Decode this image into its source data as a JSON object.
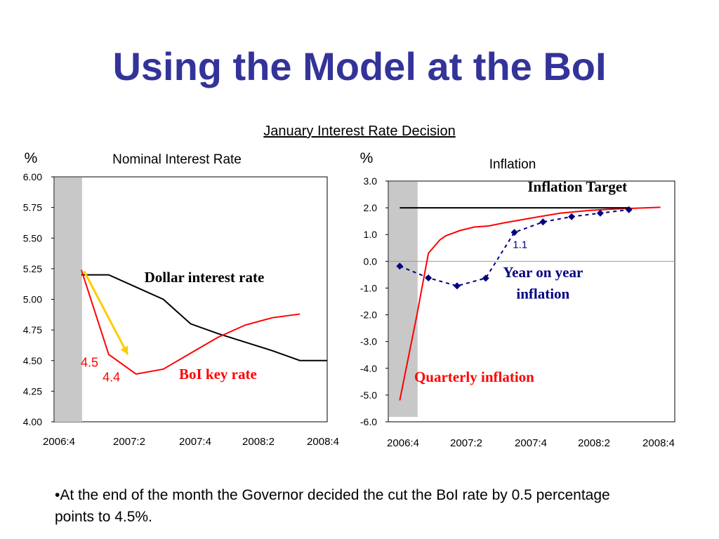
{
  "slide": {
    "title": "Using the Model at the BoI",
    "subtitle": "January Interest Rate Decision",
    "note": "•At the end of the month the Governor decided the cut the BoI rate by 0.5 percentage points to 4.5%."
  },
  "colors": {
    "title": "#333399",
    "boi_rate": "#ff0000",
    "dollar_rate": "#000000",
    "arrow": "#ffcc00",
    "yoy_inflation": "#000080",
    "shade": "#c8c8c8"
  },
  "chart_data": [
    {
      "type": "line",
      "title": "Nominal Interest Rate",
      "ylabel": "%",
      "ylim": [
        4.0,
        6.0
      ],
      "y_ticks": [
        "4.00",
        "4.25",
        "4.50",
        "4.75",
        "5.00",
        "5.25",
        "5.50",
        "5.75",
        "6.00"
      ],
      "x_tick_labels": [
        "2006:4",
        "2007:2",
        "2007:4",
        "2008:2",
        "2008:4"
      ],
      "shaded_region": {
        "x_start": 0,
        "x_end": 0.5
      },
      "series": [
        {
          "name": "Dollar interest rate",
          "color": "#000000",
          "points": [
            [
              0.5,
              5.2
            ],
            [
              1,
              5.2
            ],
            [
              1.5,
              5.1
            ],
            [
              2,
              5.0
            ],
            [
              2.5,
              4.8
            ],
            [
              3,
              4.72
            ],
            [
              3.5,
              4.65
            ],
            [
              4,
              4.58
            ],
            [
              4.5,
              4.5
            ],
            [
              5,
              4.5
            ]
          ]
        },
        {
          "name": "BoI key rate",
          "color": "#ff0000",
          "points": [
            [
              0.5,
              5.24
            ],
            [
              1,
              4.55
            ],
            [
              1.5,
              4.39
            ],
            [
              2,
              4.43
            ],
            [
              2.5,
              4.56
            ],
            [
              3,
              4.69
            ],
            [
              3.5,
              4.79
            ],
            [
              4,
              4.85
            ],
            [
              4.5,
              4.88
            ]
          ]
        }
      ],
      "arrow": {
        "from": [
          0.55,
          5.23
        ],
        "to": [
          1.35,
          4.55
        ],
        "color": "#ffcc00"
      },
      "annotations": [
        {
          "text": "Dollar interest rate",
          "x": 2.75,
          "y": 5.14
        },
        {
          "text": "BoI key rate",
          "x": 3.0,
          "y": 4.35
        },
        {
          "text": "4.5",
          "x": 0.65,
          "y": 4.45
        },
        {
          "text": "4.4",
          "x": 1.05,
          "y": 4.33
        }
      ]
    },
    {
      "type": "line",
      "title": "Inflation",
      "ylabel": "%",
      "ylim": [
        -6.0,
        3.0
      ],
      "y_ticks": [
        "-6.0",
        "-5.0",
        "-4.0",
        "-3.0",
        "-2.0",
        "-1.0",
        "0.0",
        "1.0",
        "2.0",
        "3.0"
      ],
      "x_tick_labels": [
        "2006:4",
        "2007:2",
        "2007:4",
        "2008:2",
        "2008:4"
      ],
      "shaded_region": {
        "x_start": 0,
        "x_end": 0.5
      },
      "series": [
        {
          "name": "Quarterly inflation",
          "color": "#ff0000",
          "points": [
            [
              0.2,
              -5.2
            ],
            [
              0.5,
              -2.0
            ],
            [
              0.7,
              0.3
            ],
            [
              0.9,
              0.8
            ],
            [
              1,
              0.95
            ],
            [
              1.25,
              1.15
            ],
            [
              1.5,
              1.28
            ],
            [
              1.75,
              1.32
            ],
            [
              2,
              1.43
            ],
            [
              2.5,
              1.62
            ],
            [
              3,
              1.8
            ],
            [
              3.5,
              1.9
            ],
            [
              4,
              1.96
            ],
            [
              4.5,
              2.0
            ],
            [
              4.75,
              2.02
            ]
          ]
        },
        {
          "name": "Year on year inflation",
          "color": "#000080",
          "points": [
            [
              0.2,
              -0.18
            ],
            [
              0.7,
              -0.62
            ],
            [
              1.2,
              -0.92
            ],
            [
              1.7,
              -0.63
            ],
            [
              2.2,
              1.08
            ],
            [
              2.7,
              1.47
            ],
            [
              3.2,
              1.67
            ],
            [
              3.7,
              1.8
            ],
            [
              4.2,
              1.93
            ]
          ]
        },
        {
          "name": "Inflation Target",
          "color": "#000000",
          "points": [
            [
              0.2,
              2.0
            ],
            [
              4.2,
              2.0
            ]
          ]
        }
      ],
      "annotations": [
        {
          "text": "Inflation Target",
          "x": 3.3,
          "y": 2.6
        },
        {
          "text": "Year on year",
          "x": 2.7,
          "y": -0.6
        },
        {
          "text": "inflation",
          "x": 2.7,
          "y": -1.4
        },
        {
          "text": "Quarterly inflation",
          "x": 1.5,
          "y": -4.5
        },
        {
          "text": "1.1",
          "x": 2.3,
          "y": 0.5
        }
      ]
    }
  ]
}
